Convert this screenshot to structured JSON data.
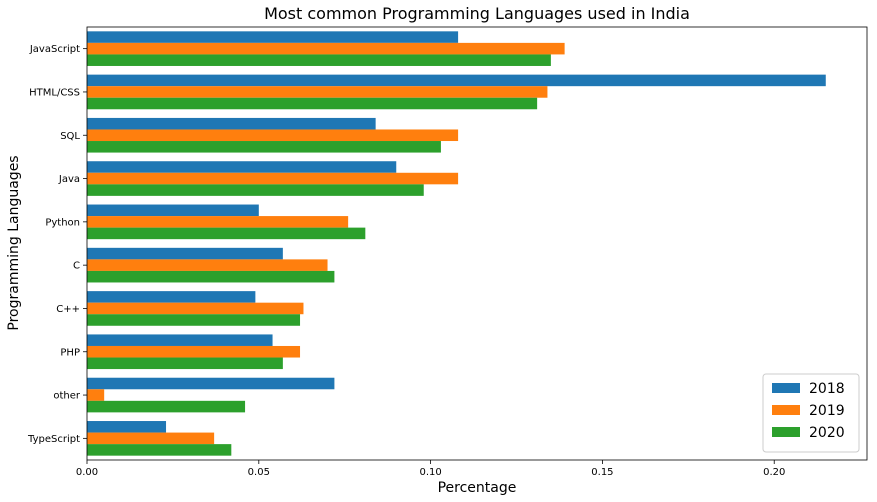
{
  "chart_data": {
    "type": "bar",
    "orientation": "horizontal",
    "title": "Most common Programming Languages used in India",
    "xlabel": "Percentage",
    "ylabel": "Programming Languages",
    "xlim": [
      0,
      0.227
    ],
    "xticks": [
      "0.00",
      "0.05",
      "0.10",
      "0.15",
      "0.20"
    ],
    "xtick_values": [
      0,
      0.05,
      0.1,
      0.15,
      0.2
    ],
    "categories": [
      "JavaScript",
      "HTML/CSS",
      "SQL",
      "Java",
      "Python",
      "C",
      "C++",
      "PHP",
      "other",
      "TypeScript"
    ],
    "series": [
      {
        "name": "2018",
        "color": "#1f77b4",
        "values": [
          0.108,
          0.215,
          0.084,
          0.09,
          0.05,
          0.057,
          0.049,
          0.054,
          0.072,
          0.023
        ]
      },
      {
        "name": "2019",
        "color": "#ff7f0e",
        "values": [
          0.139,
          0.134,
          0.108,
          0.108,
          0.076,
          0.07,
          0.063,
          0.062,
          0.005,
          0.037
        ]
      },
      {
        "name": "2020",
        "color": "#2ca02c",
        "values": [
          0.135,
          0.131,
          0.103,
          0.098,
          0.081,
          0.072,
          0.062,
          0.057,
          0.046,
          0.042
        ]
      }
    ],
    "grid": false,
    "legend_position": "lower-right"
  }
}
